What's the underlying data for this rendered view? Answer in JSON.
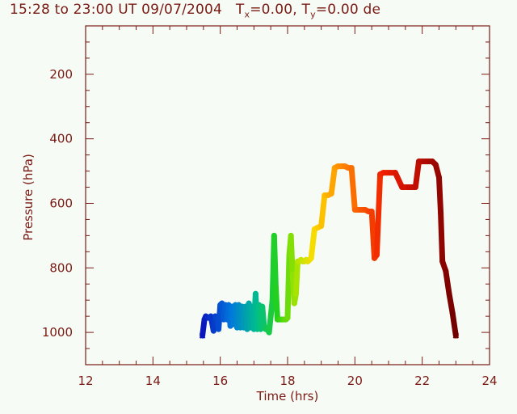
{
  "title": {
    "time_range": "15:28 to 23:00 UT 09/07/2004",
    "tx_label": "T",
    "tx_sub": "x",
    "tx_value": "=0.00,",
    "ty_label": "T",
    "ty_sub": "y",
    "ty_value": "=0.00 de"
  },
  "chart_data": {
    "type": "line",
    "xlabel": "Time  (hrs)",
    "ylabel": "Pressure  (hPa)",
    "xlim": [
      12,
      24
    ],
    "ylim": [
      1100,
      50
    ],
    "x_ticks": [
      12,
      14,
      16,
      18,
      20,
      22,
      24
    ],
    "y_ticks": [
      200,
      400,
      600,
      800,
      1000
    ],
    "grid": false,
    "color_scale": "time-rainbow (blue to dark red)",
    "series": [
      {
        "x": [
          15.47,
          15.53,
          15.57,
          15.65,
          15.72,
          15.8,
          15.85,
          15.88,
          15.95,
          16.0,
          16.05,
          16.1,
          16.15,
          16.2,
          16.25,
          16.3,
          16.35,
          16.4,
          16.45,
          16.5,
          16.55,
          16.6,
          16.65,
          16.7,
          16.75,
          16.8,
          16.85,
          16.9,
          16.95,
          17.0,
          17.05,
          17.1,
          17.15,
          17.2,
          17.25,
          17.3,
          17.35,
          17.4,
          17.45,
          17.5,
          17.55,
          17.6,
          17.65,
          17.7,
          17.75,
          17.8,
          17.85,
          17.9,
          17.95,
          18.0,
          18.05,
          18.1,
          18.15,
          18.2,
          18.25,
          18.3,
          18.35,
          18.4,
          18.45,
          18.5,
          18.55,
          18.6,
          18.7,
          18.8,
          18.9,
          19.0,
          19.1,
          19.2,
          19.3,
          19.4,
          19.5,
          19.6,
          19.7,
          19.8,
          19.9,
          20.0,
          20.1,
          20.2,
          20.3,
          20.4,
          20.5,
          20.58,
          20.65,
          20.75,
          20.85,
          20.95,
          21.05,
          21.2,
          21.4,
          21.6,
          21.7,
          21.8,
          21.9,
          22.0,
          22.1,
          22.2,
          22.3,
          22.4,
          22.5,
          22.55,
          22.6,
          22.7,
          22.8,
          22.9,
          23.0
        ],
        "y": [
          1010,
          960,
          950,
          955,
          950,
          995,
          950,
          955,
          990,
          915,
          910,
          960,
          915,
          960,
          915,
          980,
          920,
          975,
          915,
          985,
          915,
          985,
          920,
          985,
          920,
          990,
          910,
          985,
          920,
          990,
          880,
          990,
          915,
          990,
          920,
          980,
          990,
          990,
          1000,
          950,
          900,
          700,
          860,
          960,
          960,
          960,
          960,
          960,
          960,
          955,
          760,
          700,
          820,
          910,
          880,
          780,
          780,
          775,
          780,
          780,
          775,
          780,
          770,
          680,
          675,
          670,
          575,
          575,
          570,
          490,
          485,
          485,
          485,
          490,
          490,
          620,
          620,
          620,
          620,
          625,
          625,
          770,
          760,
          510,
          505,
          505,
          505,
          505,
          550,
          550,
          550,
          550,
          470,
          470,
          470,
          470,
          470,
          480,
          520,
          630,
          780,
          810,
          880,
          940,
          1010
        ]
      }
    ]
  }
}
